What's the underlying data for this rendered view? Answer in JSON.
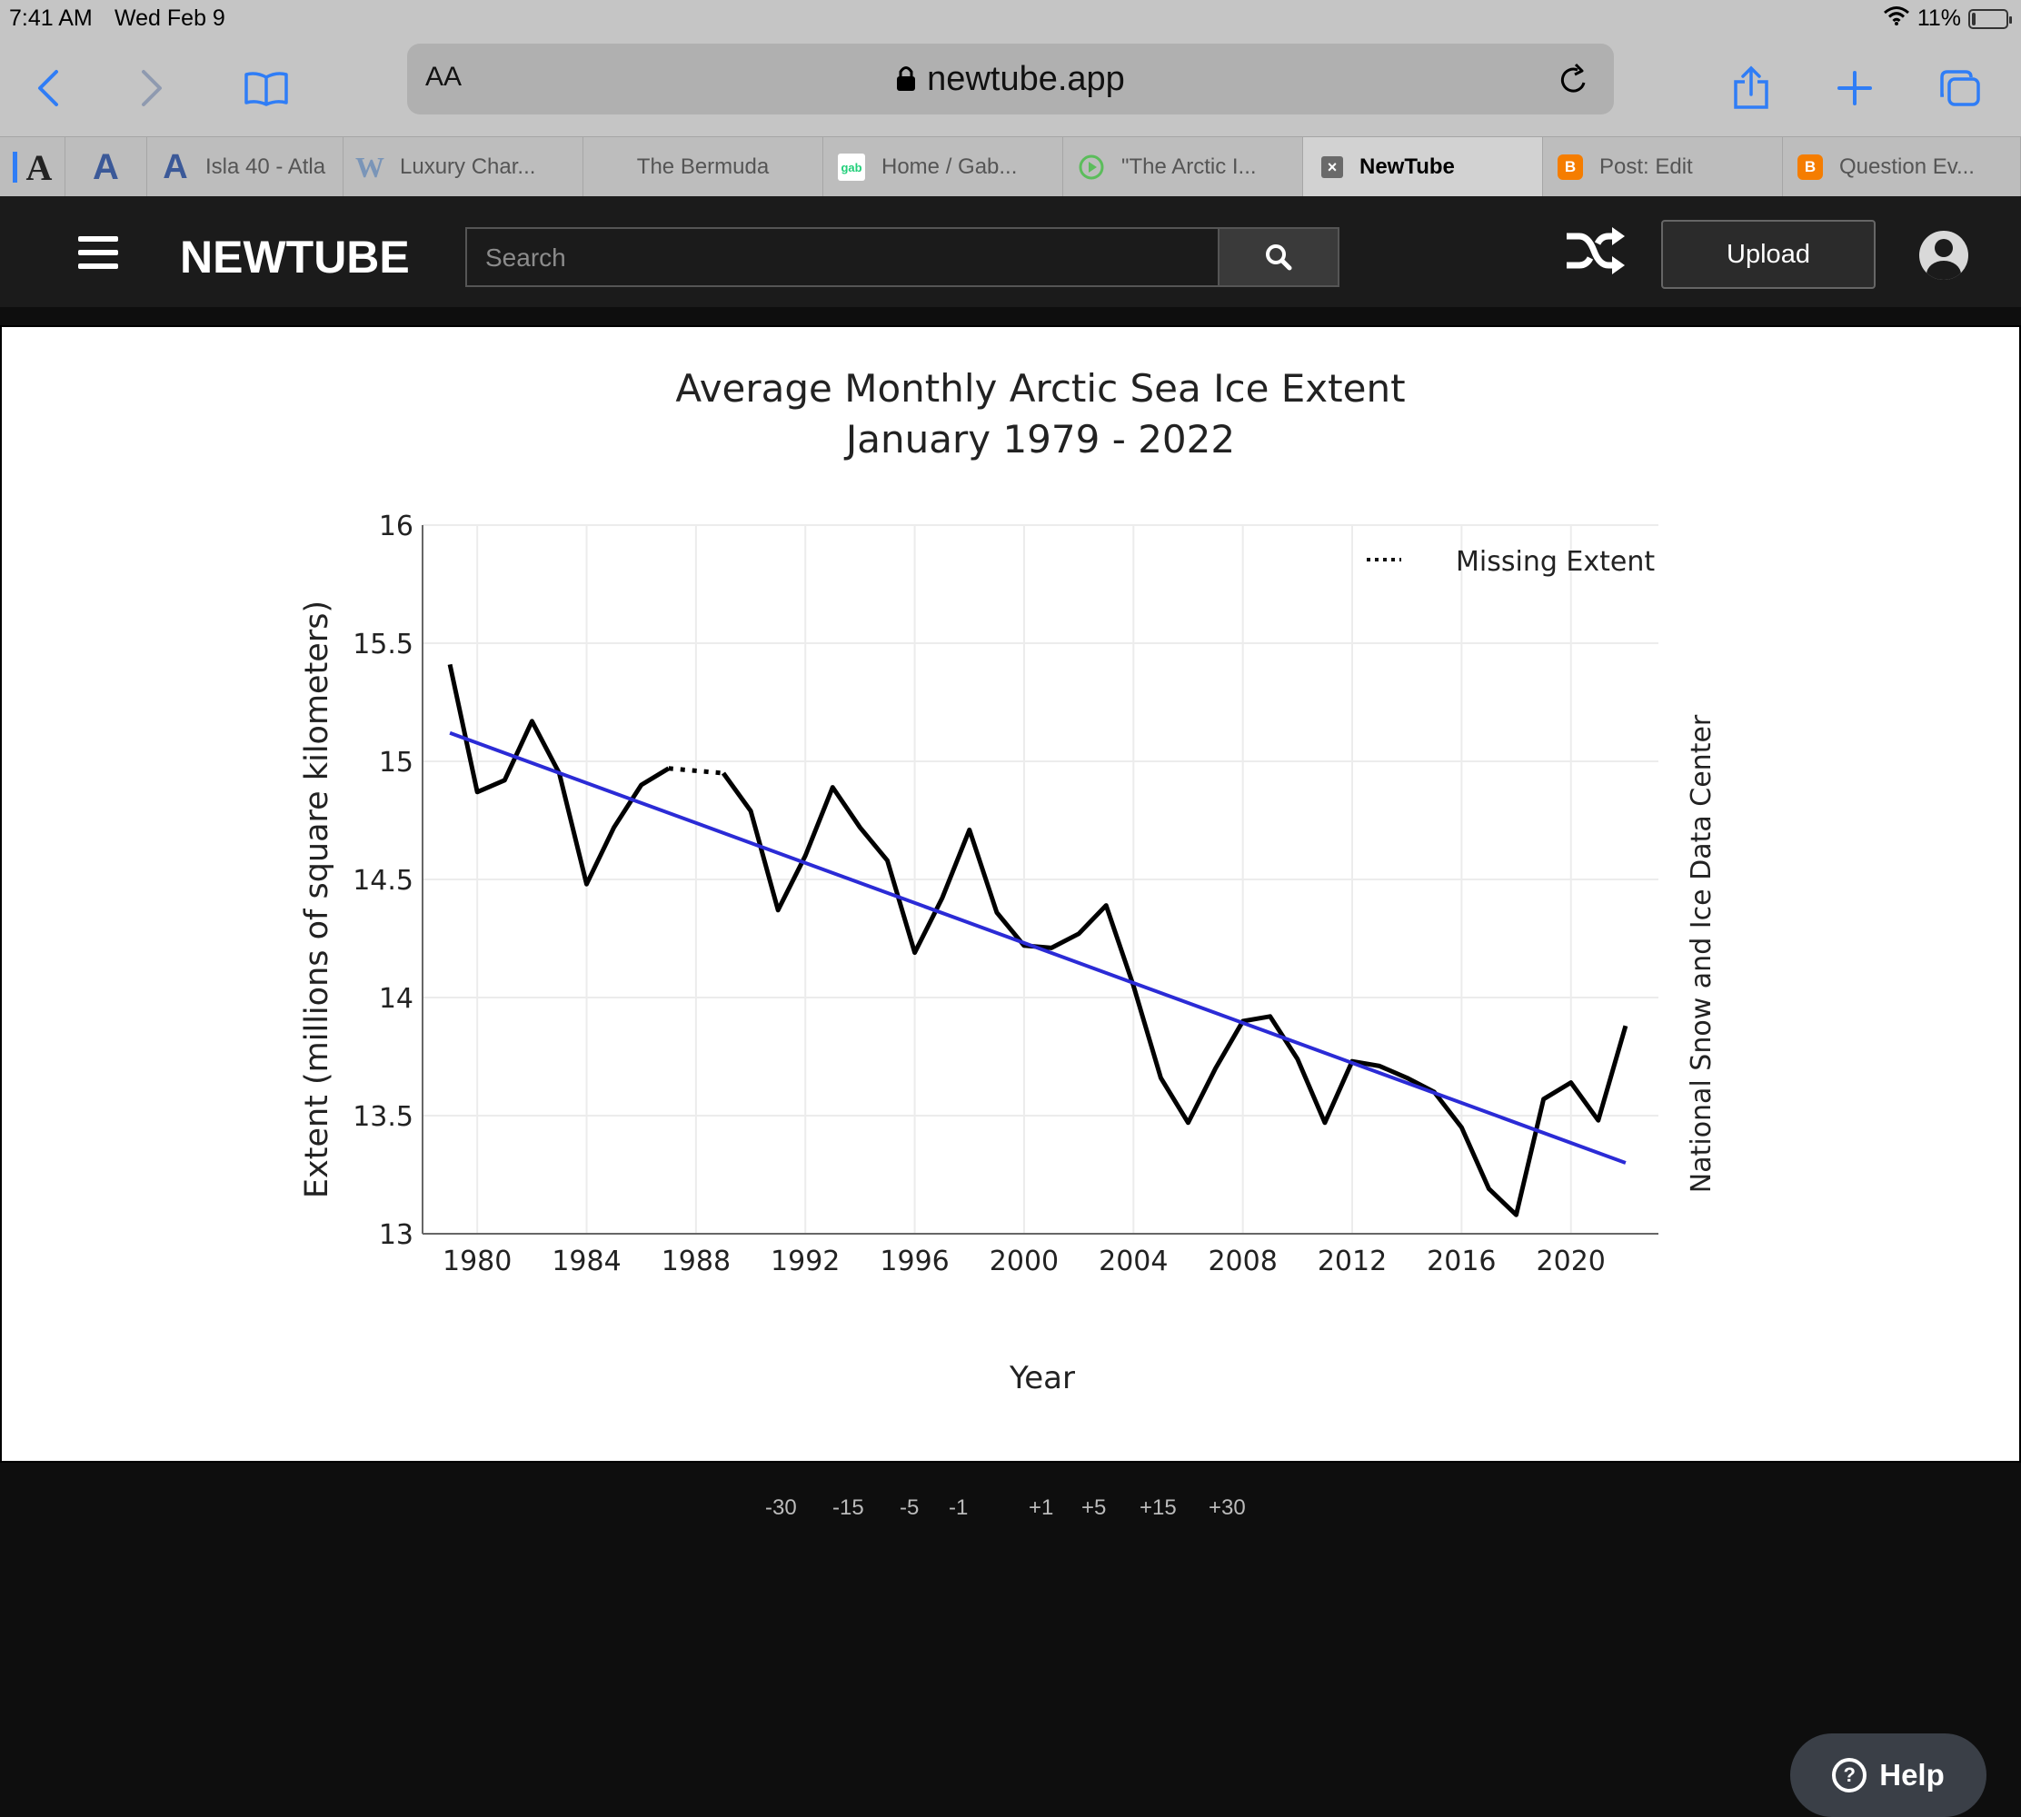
{
  "status_bar": {
    "time": "7:41 AM",
    "date": "Wed Feb 9",
    "battery": "11%",
    "battery_level": 0.11
  },
  "browser": {
    "text_size_label": "AA",
    "url": "newtube.app"
  },
  "tabs": [
    {
      "label": "Isla 40 - Atla",
      "favicon": "A"
    },
    {
      "label": "Luxury Char...",
      "favicon": "W"
    },
    {
      "label": "The Bermuda",
      "favicon": ""
    },
    {
      "label": "Home / Gab...",
      "favicon": "gab"
    },
    {
      "label": "\"The Arctic I...",
      "favicon": "play"
    },
    {
      "label": "NewTube",
      "favicon": "x",
      "active": true
    },
    {
      "label": "Post: Edit",
      "favicon": "B"
    },
    {
      "label": "Question Ev...",
      "favicon": "B"
    }
  ],
  "site": {
    "logo": "NEWTUBE",
    "search_placeholder": "Search",
    "upload_label": "Upload",
    "help_label": "Help"
  },
  "chart_data": {
    "type": "line",
    "title": "Average Monthly Arctic Sea Ice Extent",
    "subtitle": "January 1979 - 2022",
    "xlabel": "Year",
    "ylabel": "Extent (millions of square kilometers)",
    "xlim": [
      1978,
      2023.2
    ],
    "ylim": [
      13,
      16
    ],
    "x_ticks": [
      1980,
      1984,
      1988,
      1992,
      1996,
      2000,
      2004,
      2008,
      2012,
      2016,
      2020
    ],
    "y_ticks": [
      "13",
      "13.5",
      "14",
      "14.5",
      "15",
      "15.5",
      "16"
    ],
    "legend": {
      "label": "Missing Extent",
      "position": "top-right"
    },
    "credit": "National Snow and Ice Data Center",
    "series": [
      {
        "style": "solid",
        "color": "#000000",
        "x": [
          1979,
          1980,
          1981,
          1982,
          1983,
          1984,
          1985,
          1986,
          1987
        ],
        "y": [
          15.41,
          14.87,
          14.92,
          15.17,
          14.95,
          14.48,
          14.72,
          14.9,
          14.97
        ]
      },
      {
        "style": "dotted",
        "color": "#000000",
        "x": [
          1987,
          1988,
          1989
        ],
        "y": [
          14.97,
          14.96,
          14.95
        ]
      },
      {
        "style": "solid",
        "color": "#000000",
        "x": [
          1989,
          1990,
          1991,
          1992,
          1993,
          1994,
          1995,
          1996,
          1997,
          1998,
          1999,
          2000,
          2001,
          2002,
          2003,
          2004,
          2005,
          2006,
          2007,
          2008,
          2009,
          2010,
          2011,
          2012,
          2013,
          2014,
          2015,
          2016,
          2017,
          2018,
          2019,
          2020,
          2021,
          2022
        ],
        "y": [
          14.95,
          14.79,
          14.37,
          14.6,
          14.89,
          14.72,
          14.58,
          14.19,
          14.42,
          14.71,
          14.36,
          14.22,
          14.21,
          14.27,
          14.39,
          14.05,
          13.66,
          13.47,
          13.7,
          13.9,
          13.92,
          13.74,
          13.47,
          13.73,
          13.71,
          13.66,
          13.6,
          13.45,
          13.19,
          13.08,
          13.57,
          13.64,
          13.48,
          13.88
        ]
      },
      {
        "style": "trend",
        "color": "#2b2bd6",
        "x": [
          1979,
          2022
        ],
        "y": [
          15.12,
          13.3
        ]
      }
    ]
  }
}
